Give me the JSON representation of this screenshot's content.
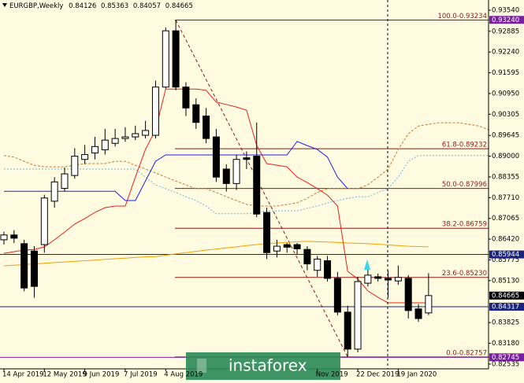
{
  "chart_data": {
    "type": "candlestick",
    "symbol": "EURGBP,Weekly",
    "watermark": "instaforex",
    "categories": [
      "14 Apr 2019",
      null,
      null,
      null,
      "12 May 2019",
      null,
      null,
      null,
      "9 Jun 2019",
      null,
      null,
      null,
      "7 Jul 2019",
      null,
      null,
      null,
      "4 Aug 2019",
      null,
      null,
      null,
      null,
      null,
      null,
      null,
      null,
      null,
      null,
      null,
      null,
      null,
      null,
      "Nov 2019",
      null,
      null,
      null,
      "22 Dec 2019",
      null,
      null,
      null,
      "19 Jan 2020",
      null,
      null,
      null,
      null,
      null,
      null,
      null,
      null,
      null
    ],
    "open": [
      0.864,
      0.8655,
      0.8628,
      0.8605,
      0.8625,
      0.876,
      0.88,
      0.884,
      0.889,
      0.891,
      0.892,
      0.894,
      0.8955,
      0.896,
      0.8965,
      0.8965,
      0.9115,
      0.929,
      0.9115,
      0.906,
      0.9025,
      0.896,
      0.886,
      0.8815,
      0.8895,
      0.89,
      0.8725,
      0.8605,
      0.8625,
      0.8625,
      0.861,
      0.8545,
      0.8575,
      0.852,
      0.8415,
      0.83,
      0.8505,
      0.8525,
      0.852,
      0.8512,
      0.852,
      0.8425,
      0.84126,
      null,
      null,
      null,
      null,
      null,
      null
    ],
    "high": [
      0.8665,
      0.867,
      0.864,
      0.862,
      0.878,
      0.8835,
      0.8865,
      0.8925,
      0.8935,
      0.896,
      0.8985,
      0.8985,
      0.899,
      0.8995,
      0.901,
      0.9135,
      0.93,
      0.9323,
      0.913,
      0.908,
      0.905,
      0.8985,
      0.8875,
      0.8905,
      0.8915,
      0.9005,
      0.874,
      0.864,
      0.863,
      0.863,
      0.862,
      0.859,
      0.859,
      0.854,
      0.8435,
      0.8525,
      0.8555,
      0.8535,
      0.8545,
      0.856,
      0.853,
      0.844,
      0.85363,
      null,
      null,
      null,
      null,
      null,
      null
    ],
    "low": [
      0.8625,
      0.863,
      0.848,
      0.846,
      0.86,
      0.874,
      0.879,
      0.883,
      0.8875,
      0.889,
      0.8905,
      0.893,
      0.8945,
      0.895,
      0.8955,
      0.8955,
      0.911,
      0.9105,
      0.9025,
      0.8985,
      0.894,
      0.882,
      0.879,
      0.8795,
      0.886,
      0.871,
      0.858,
      0.8585,
      0.86,
      0.8595,
      0.8545,
      0.8525,
      0.851,
      0.8405,
      0.8276,
      0.829,
      0.8495,
      0.851,
      0.846,
      0.85,
      0.8395,
      0.8385,
      0.84057,
      null,
      null,
      null,
      null,
      null,
      null
    ],
    "close": [
      0.8655,
      0.8645,
      0.849,
      0.8495,
      0.877,
      0.882,
      0.8845,
      0.89,
      0.8905,
      0.893,
      0.895,
      0.8955,
      0.896,
      0.897,
      0.898,
      0.9115,
      0.929,
      0.9115,
      0.905,
      0.9005,
      0.8955,
      0.8835,
      0.8815,
      0.889,
      0.889,
      0.872,
      0.86,
      0.862,
      0.8617,
      0.8612,
      0.8565,
      0.858,
      0.852,
      0.8415,
      0.83,
      0.851,
      0.853,
      0.852,
      0.8515,
      0.8523,
      0.842,
      0.8395,
      0.84665,
      null,
      null,
      null,
      null,
      null,
      null
    ],
    "indicators": [
      {
        "color": "#c87832",
        "dash": "3,2",
        "values": [
          0.8902,
          0.8897,
          0.8884,
          0.8872,
          0.8867,
          0.8867,
          0.8867,
          0.8872,
          0.8877,
          0.8877,
          0.8877,
          0.8884,
          0.8884,
          0.8872,
          0.886,
          0.8848,
          0.8835,
          0.8823,
          0.8811,
          0.8799,
          0.8799,
          0.8787,
          0.8774,
          0.8762,
          0.875,
          0.8745,
          0.8745,
          0.8745,
          0.875,
          0.8755,
          0.8769,
          0.8787,
          0.8799,
          0.8799,
          0.8799,
          0.8799,
          0.8811,
          0.8835,
          0.886,
          0.8921,
          0.897,
          0.8994,
          0.8999,
          0.9004,
          0.9004,
          0.9004,
          0.8999,
          0.8994,
          0.8982
        ]
      },
      {
        "color": "#6ab4e6",
        "dash": "2,2",
        "values": [
          0.886,
          0.886,
          0.886,
          0.886,
          0.886,
          0.886,
          0.886,
          0.886,
          0.886,
          0.886,
          0.886,
          0.886,
          0.886,
          0.886,
          0.8835,
          0.8811,
          0.8799,
          0.8787,
          0.8774,
          0.8762,
          0.8745,
          0.8721,
          0.8721,
          0.8721,
          0.8721,
          0.8725,
          0.873,
          0.873,
          0.873,
          0.873,
          0.8738,
          0.8745,
          0.8755,
          0.8762,
          0.8769,
          0.8774,
          0.8774,
          0.8787,
          0.8799,
          0.8835,
          0.8884,
          0.8902,
          0.8902,
          0.8902,
          0.8902,
          0.8902,
          0.8902,
          0.8902,
          0.8902
        ]
      },
      {
        "color": "#f0a000",
        "values": [
          0.8559,
          0.8561,
          0.8563,
          0.8565,
          0.8567,
          0.8569,
          0.8571,
          0.8573,
          0.8575,
          0.8577,
          0.8579,
          0.8581,
          0.8583,
          0.8585,
          0.8587,
          0.8588,
          0.8592,
          0.8596,
          0.86,
          0.8604,
          0.8608,
          0.8611,
          0.8615,
          0.8618,
          0.8622,
          0.8625,
          0.8628,
          0.863,
          0.8632,
          0.8634,
          0.8635,
          0.8634,
          0.8633,
          0.8632,
          0.863,
          0.8629,
          0.8628,
          0.8626,
          0.8624,
          0.8622,
          0.862,
          0.8619,
          0.8618,
          null,
          null,
          null,
          null,
          null,
          null
        ]
      },
      {
        "color": "#e8201c",
        "values": [
          0.8598,
          0.8603,
          0.8608,
          0.861,
          0.8618,
          0.864,
          0.8664,
          0.8689,
          0.8706,
          0.8725,
          0.874,
          0.8745,
          0.8745,
          0.8835,
          0.8921,
          0.8982,
          0.9109,
          0.9109,
          0.9109,
          0.9109,
          0.9105,
          0.9068,
          0.9061,
          0.9053,
          0.9043,
          0.8933,
          0.8877,
          0.8872,
          0.8867,
          0.8835,
          0.8818,
          0.8799,
          0.8779,
          0.8745,
          0.8542,
          0.8518,
          0.8481,
          0.8461,
          0.8444,
          0.8444,
          0.8444,
          0.8444,
          0.8444,
          null,
          null,
          null,
          null,
          null,
          null
        ]
      },
      {
        "color": "#1e1ee6",
        "values": [
          0.8791,
          0.8791,
          0.8791,
          0.8791,
          0.8791,
          0.8791,
          0.8791,
          0.8791,
          0.8791,
          0.8791,
          0.8791,
          0.8791,
          0.8762,
          0.8762,
          0.8823,
          0.8884,
          0.8904,
          0.8904,
          0.8904,
          0.8904,
          0.8904,
          0.8904,
          0.8904,
          0.8904,
          0.8904,
          0.8904,
          0.8904,
          0.8904,
          0.8904,
          0.8946,
          0.8933,
          0.8921,
          0.8897,
          0.8835,
          0.8799,
          null,
          null,
          null,
          null,
          null,
          null,
          null,
          null,
          null,
          null,
          null,
          null,
          null,
          null
        ]
      }
    ],
    "fibonacci": [
      {
        "label": "100.0-0.93234",
        "value": 0.93234
      },
      {
        "label": "61.8-0.89232",
        "value": 0.89232
      },
      {
        "label": "50.0-0.87996",
        "value": 0.87996
      },
      {
        "label": "38.2-0.86759",
        "value": 0.86759
      },
      {
        "label": "23.6-0.85230",
        "value": 0.8523
      },
      {
        "label": "0.0-0.82757",
        "value": 0.82757
      }
    ],
    "fib_color": "#8b1a1a",
    "price_lines": [
      {
        "value": 0.9324,
        "label": "0.93240",
        "color": "#7a1fa2",
        "line": false
      },
      {
        "value": 0.85944,
        "label": "0.85944",
        "color": "#1a237e",
        "line": true
      },
      {
        "value": 0.84665,
        "label": "0.84665",
        "color": "#000000",
        "line": false
      },
      {
        "value": 0.84317,
        "label": "0.84317",
        "color": "#1a237e",
        "line": true
      },
      {
        "value": 0.82745,
        "label": "0.82745",
        "color": "#7a1fa2",
        "line": true
      }
    ],
    "ylim": [
      0.82386,
      0.93858
    ],
    "yticks": [
      {
        "value": 0.9354,
        "label": "0.93540"
      },
      0.92885,
      {
        "value": 0.9224,
        "label": "0.92240"
      },
      0.91595,
      {
        "value": 0.9095,
        "label": "0.90950"
      },
      0.90305,
      0.89645,
      {
        "value": 0.89,
        "label": "0.89000"
      },
      0.88355,
      {
        "value": 0.8771,
        "label": "0.87710"
      },
      0.87065,
      {
        "value": 0.8642,
        "label": "0.86420"
      },
      0.85775,
      {
        "value": 0.8513,
        "label": "0.85130"
      },
      0.83825,
      {
        "value": 0.8318,
        "label": "0.83180"
      },
      0.82535
    ]
  }
}
